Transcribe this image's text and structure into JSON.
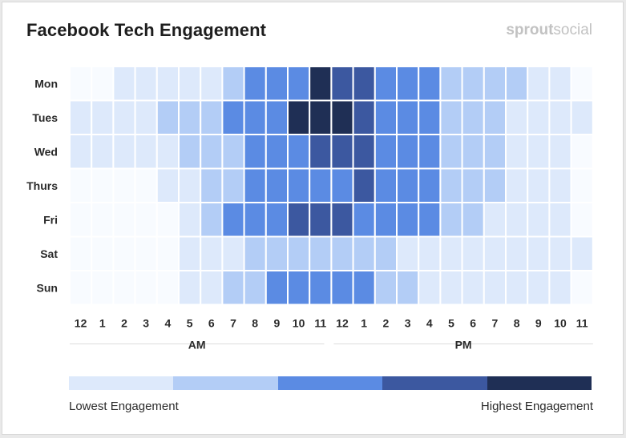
{
  "title": "Facebook Tech Engagement",
  "brand": {
    "bold": "sprout",
    "light": "social"
  },
  "chart_data": {
    "type": "heatmap",
    "title": "Facebook Tech Engagement",
    "rows": [
      "Mon",
      "Tues",
      "Wed",
      "Thurs",
      "Fri",
      "Sat",
      "Sun"
    ],
    "columns": [
      "12",
      "1",
      "2",
      "3",
      "4",
      "5",
      "6",
      "7",
      "8",
      "9",
      "10",
      "11",
      "12",
      "1",
      "2",
      "3",
      "4",
      "5",
      "6",
      "7",
      "8",
      "9",
      "10",
      "11"
    ],
    "period_labels": [
      "AM",
      "PM"
    ],
    "levels": 6,
    "values": [
      [
        0,
        0,
        1,
        1,
        1,
        1,
        1,
        2,
        3,
        3,
        3,
        5,
        4,
        4,
        3,
        3,
        3,
        2,
        2,
        2,
        2,
        1,
        1,
        0
      ],
      [
        1,
        1,
        1,
        1,
        2,
        2,
        2,
        3,
        3,
        3,
        5,
        5,
        5,
        4,
        3,
        3,
        3,
        2,
        2,
        2,
        1,
        1,
        1,
        1
      ],
      [
        1,
        1,
        1,
        1,
        1,
        2,
        2,
        2,
        3,
        3,
        3,
        4,
        4,
        4,
        3,
        3,
        3,
        2,
        2,
        2,
        1,
        1,
        1,
        0
      ],
      [
        0,
        0,
        0,
        0,
        1,
        1,
        2,
        2,
        3,
        3,
        3,
        3,
        3,
        4,
        3,
        3,
        3,
        2,
        2,
        2,
        1,
        1,
        1,
        0
      ],
      [
        0,
        0,
        0,
        0,
        0,
        1,
        2,
        3,
        3,
        3,
        4,
        4,
        4,
        3,
        3,
        3,
        3,
        2,
        2,
        1,
        1,
        1,
        1,
        0
      ],
      [
        0,
        0,
        0,
        0,
        0,
        1,
        1,
        1,
        2,
        2,
        2,
        2,
        2,
        2,
        2,
        1,
        1,
        1,
        1,
        1,
        1,
        1,
        1,
        1
      ],
      [
        0,
        0,
        0,
        0,
        0,
        1,
        1,
        2,
        2,
        3,
        3,
        3,
        3,
        3,
        2,
        2,
        1,
        1,
        1,
        1,
        1,
        1,
        1,
        0
      ]
    ],
    "colors": [
      "#f8fbff",
      "#dde9fb",
      "#b3cdf6",
      "#5b8be3",
      "#3c58a0",
      "#1f2f55"
    ],
    "legend": {
      "colors": [
        "#dde9fb",
        "#b3cdf6",
        "#5b8be3",
        "#3c58a0",
        "#1f2f55"
      ],
      "low_label": "Lowest Engagement",
      "high_label": "Highest Engagement"
    }
  }
}
